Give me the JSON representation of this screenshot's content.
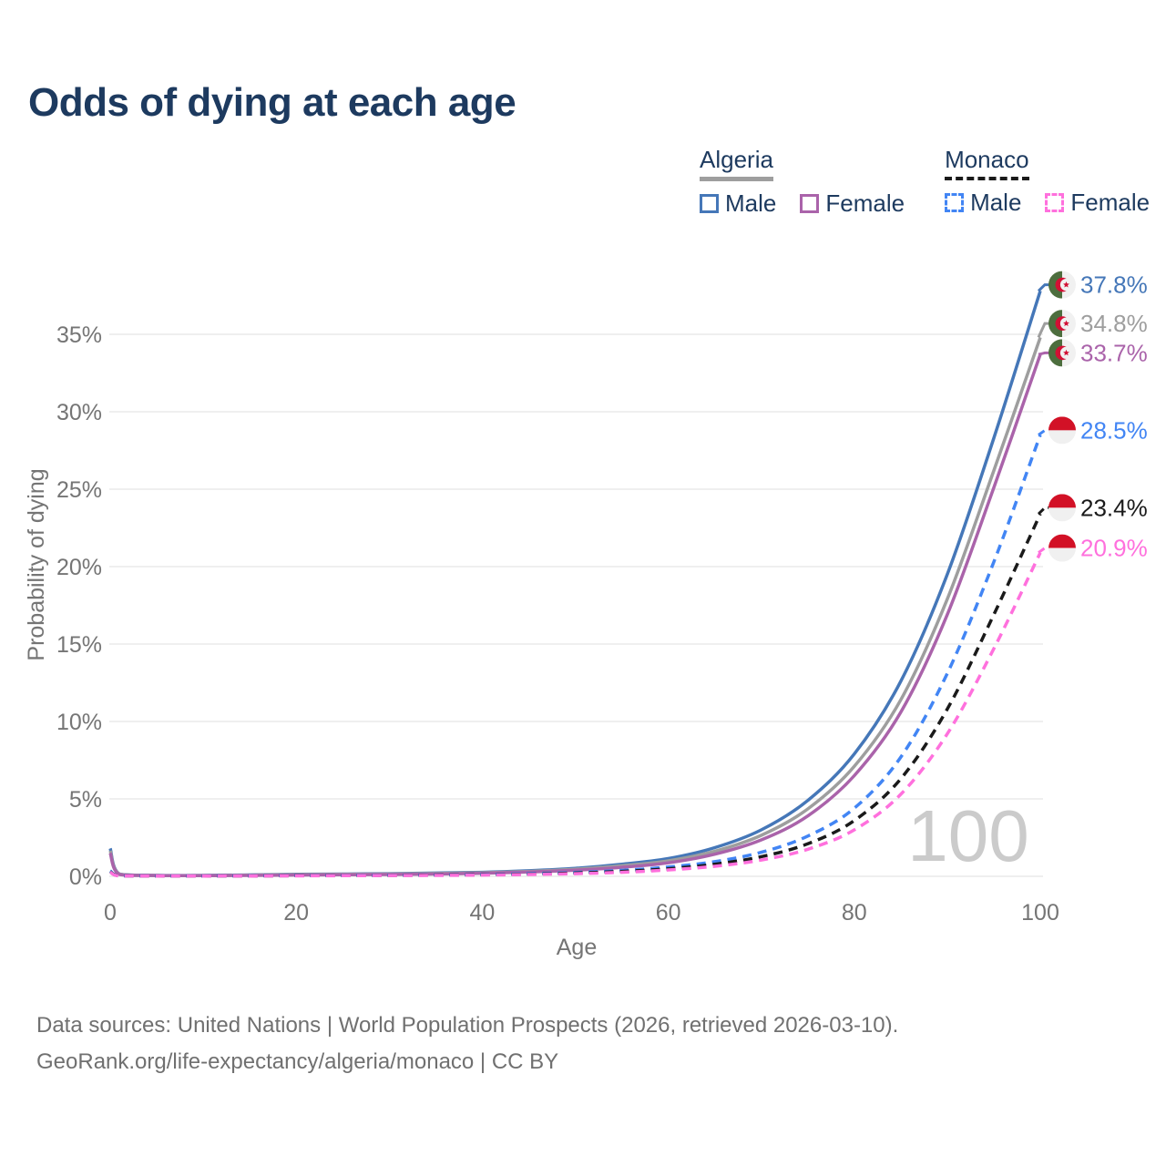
{
  "title": "Odds of dying at each age",
  "legend": {
    "groups": [
      {
        "label": "Algeria",
        "line_style": "solid",
        "line_color": "#9e9e9e",
        "items": [
          {
            "label": "Male",
            "color": "#4577b8",
            "style": "solid"
          },
          {
            "label": "Female",
            "color": "#aa63aa",
            "style": "solid"
          }
        ]
      },
      {
        "label": "Monaco",
        "line_style": "dashed",
        "line_color": "#1a1a1a",
        "items": [
          {
            "label": "Male",
            "color": "#4285f4",
            "style": "dashed"
          },
          {
            "label": "Female",
            "color": "#ff70dd",
            "style": "dashed"
          }
        ]
      }
    ]
  },
  "chart_data": {
    "type": "line",
    "title": "Odds of dying at each age",
    "xlabel": "Age",
    "ylabel": "Probability of dying",
    "x_ticks": [
      0,
      20,
      40,
      60,
      80,
      100
    ],
    "y_ticks_pct": [
      0,
      5,
      10,
      15,
      20,
      25,
      30,
      35
    ],
    "xlim": [
      0,
      100
    ],
    "ylim_pct": [
      0,
      38.5
    ],
    "grid": "horizontal",
    "legend_position": "top-right",
    "watermark": "100",
    "ages": [
      0,
      1,
      5,
      10,
      15,
      20,
      25,
      30,
      35,
      40,
      45,
      50,
      55,
      60,
      65,
      70,
      75,
      80,
      85,
      90,
      95,
      100
    ],
    "series": [
      {
        "name": "Algeria Male",
        "country": "Algeria",
        "sex": "Male",
        "color": "#4577b8",
        "style": "solid",
        "flag": "dz",
        "end_label": "37.8%",
        "end_value_pct": 37.8,
        "label_pct": 38.2,
        "values_pct": [
          1.8,
          0.15,
          0.06,
          0.06,
          0.09,
          0.13,
          0.15,
          0.17,
          0.21,
          0.26,
          0.36,
          0.52,
          0.78,
          1.15,
          1.85,
          3.0,
          4.9,
          7.9,
          12.6,
          19.5,
          28.3,
          37.8
        ]
      },
      {
        "name": "Algeria Both sexes",
        "country": "Algeria",
        "sex": "Both",
        "color": "#9e9e9e",
        "style": "solid",
        "flag": "dz",
        "end_label": "34.8%",
        "end_value_pct": 34.8,
        "label_pct": 35.7,
        "values_pct": [
          1.65,
          0.14,
          0.05,
          0.05,
          0.08,
          0.11,
          0.13,
          0.15,
          0.18,
          0.23,
          0.32,
          0.46,
          0.68,
          1.0,
          1.62,
          2.65,
          4.35,
          7.1,
          11.4,
          17.9,
          26.2,
          34.8
        ]
      },
      {
        "name": "Algeria Female",
        "country": "Algeria",
        "sex": "Female",
        "color": "#aa63aa",
        "style": "solid",
        "flag": "dz",
        "end_label": "33.7%",
        "end_value_pct": 33.7,
        "label_pct": 33.8,
        "values_pct": [
          1.5,
          0.12,
          0.05,
          0.04,
          0.06,
          0.08,
          0.1,
          0.12,
          0.15,
          0.2,
          0.28,
          0.4,
          0.58,
          0.87,
          1.43,
          2.35,
          3.9,
          6.5,
          10.6,
          16.9,
          25.1,
          33.7
        ]
      },
      {
        "name": "Monaco Male",
        "country": "Monaco",
        "sex": "Male",
        "color": "#4285f4",
        "style": "dashed",
        "flag": "mc",
        "end_label": "28.5%",
        "end_value_pct": 28.5,
        "label_pct": 28.8,
        "values_pct": [
          0.35,
          0.03,
          0.01,
          0.01,
          0.03,
          0.05,
          0.06,
          0.07,
          0.09,
          0.12,
          0.17,
          0.25,
          0.38,
          0.6,
          0.95,
          1.55,
          2.6,
          4.4,
          7.7,
          13.1,
          20.3,
          28.5
        ]
      },
      {
        "name": "Monaco Both sexes",
        "country": "Monaco",
        "sex": "Both",
        "color": "#1a1a1a",
        "style": "dashed",
        "flag": "mc",
        "end_label": "23.4%",
        "end_value_pct": 23.4,
        "label_pct": 23.8,
        "values_pct": [
          0.3,
          0.03,
          0.01,
          0.01,
          0.02,
          0.04,
          0.05,
          0.06,
          0.08,
          0.1,
          0.14,
          0.21,
          0.32,
          0.49,
          0.78,
          1.27,
          2.1,
          3.6,
          6.3,
          10.8,
          16.9,
          23.4
        ]
      },
      {
        "name": "Monaco Female",
        "country": "Monaco",
        "sex": "Female",
        "color": "#ff70dd",
        "style": "dashed",
        "flag": "mc",
        "end_label": "20.9%",
        "end_value_pct": 20.9,
        "label_pct": 21.2,
        "values_pct": [
          0.27,
          0.02,
          0.01,
          0.01,
          0.02,
          0.03,
          0.04,
          0.05,
          0.06,
          0.08,
          0.12,
          0.17,
          0.26,
          0.41,
          0.65,
          1.05,
          1.75,
          3.0,
          5.3,
          9.2,
          14.7,
          20.9
        ]
      }
    ],
    "flag_colors": {
      "algeria_green": "#4d6e3e",
      "algeria_white": "#f1f1f1",
      "algeria_red": "#d21034",
      "monaco_red": "#d21126",
      "monaco_white": "#f0f0f0"
    }
  },
  "footer": {
    "line1": "Data sources: United Nations | World Population Prospects (2026, retrieved 2026-03-10).",
    "line2": "GeoRank.org/life-expectancy/algeria/monaco | CC BY"
  }
}
